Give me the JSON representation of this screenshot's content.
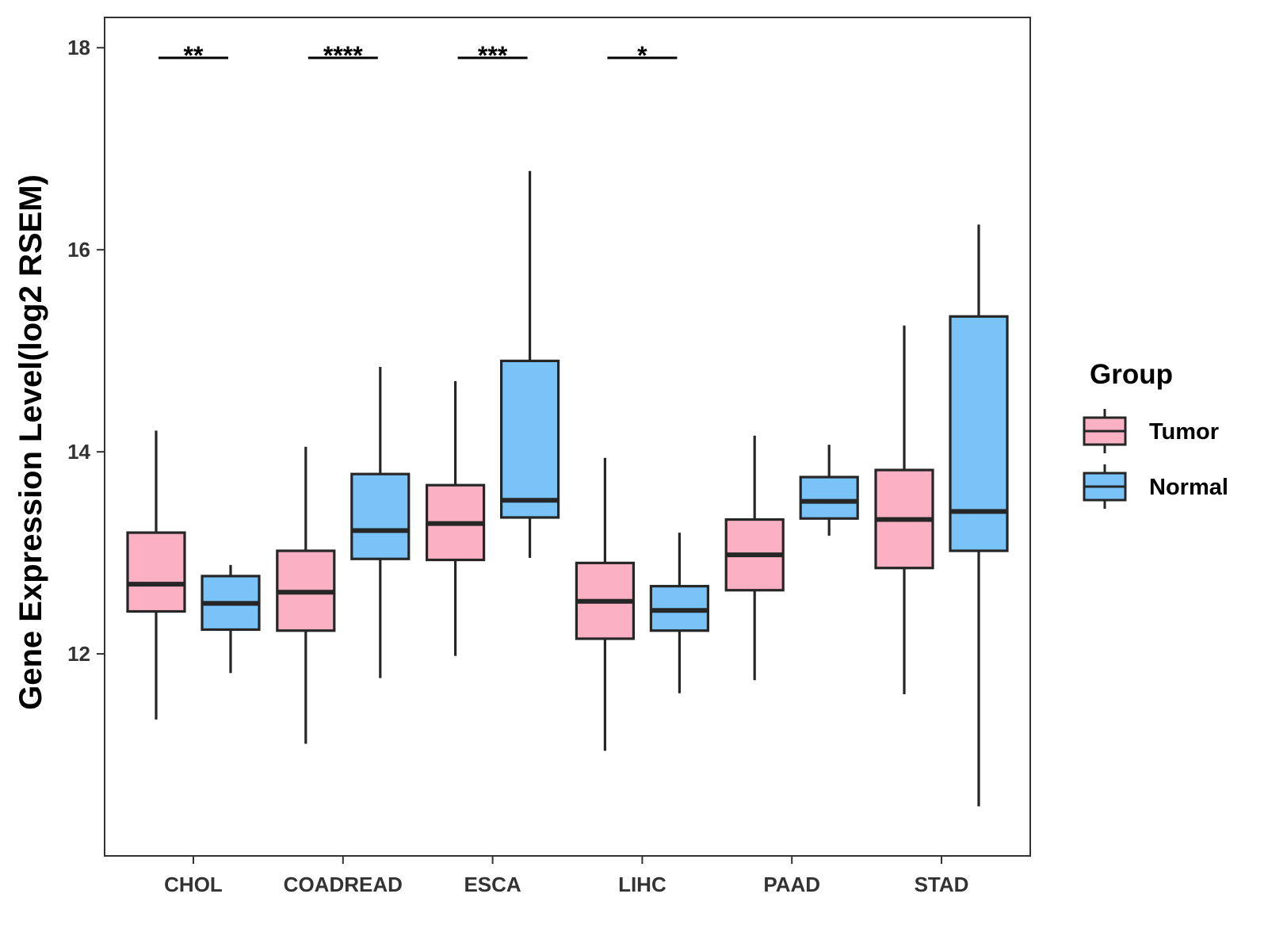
{
  "chart_data": {
    "type": "boxplot",
    "title": "",
    "xlabel": "",
    "ylabel": "Gene Expression Level(log2 RSEM)",
    "ylim": [
      10.0,
      18.3
    ],
    "yticks": [
      12,
      14,
      16,
      18
    ],
    "grid": false,
    "categories": [
      "CHOL",
      "COADREAD",
      "ESCA",
      "LIHC",
      "PAAD",
      "STAD"
    ],
    "legend": {
      "title": "Group",
      "position": "right",
      "entries": [
        {
          "label": "Tumor",
          "color": "#FBB1C3"
        },
        {
          "label": "Normal",
          "color": "#79C3F9"
        }
      ]
    },
    "series": [
      {
        "name": "Tumor",
        "color": "#FBB1C3",
        "boxes": [
          {
            "category": "CHOL",
            "whisker_low": 11.35,
            "q1": 12.42,
            "median": 12.69,
            "q3": 13.2,
            "whisker_high": 14.21
          },
          {
            "category": "COADREAD",
            "whisker_low": 11.11,
            "q1": 12.23,
            "median": 12.61,
            "q3": 13.02,
            "whisker_high": 14.05
          },
          {
            "category": "ESCA",
            "whisker_low": 11.98,
            "q1": 12.93,
            "median": 13.29,
            "q3": 13.67,
            "whisker_high": 14.7
          },
          {
            "category": "LIHC",
            "whisker_low": 11.04,
            "q1": 12.15,
            "median": 12.52,
            "q3": 12.9,
            "whisker_high": 13.94
          },
          {
            "category": "PAAD",
            "whisker_low": 11.74,
            "q1": 12.63,
            "median": 12.98,
            "q3": 13.33,
            "whisker_high": 14.16
          },
          {
            "category": "STAD",
            "whisker_low": 11.6,
            "q1": 12.85,
            "median": 13.33,
            "q3": 13.82,
            "whisker_high": 15.25
          }
        ]
      },
      {
        "name": "Normal",
        "color": "#79C3F9",
        "boxes": [
          {
            "category": "CHOL",
            "whisker_low": 11.81,
            "q1": 12.24,
            "median": 12.5,
            "q3": 12.77,
            "whisker_high": 12.88
          },
          {
            "category": "COADREAD",
            "whisker_low": 11.76,
            "q1": 12.94,
            "median": 13.22,
            "q3": 13.78,
            "whisker_high": 14.84
          },
          {
            "category": "ESCA",
            "whisker_low": 12.95,
            "q1": 13.35,
            "median": 13.52,
            "q3": 14.9,
            "whisker_high": 16.78
          },
          {
            "category": "LIHC",
            "whisker_low": 11.61,
            "q1": 12.23,
            "median": 12.43,
            "q3": 12.67,
            "whisker_high": 13.2
          },
          {
            "category": "PAAD",
            "whisker_low": 13.17,
            "q1": 13.34,
            "median": 13.51,
            "q3": 13.75,
            "whisker_high": 14.07
          },
          {
            "category": "STAD",
            "whisker_low": 10.49,
            "q1": 13.02,
            "median": 13.41,
            "q3": 15.34,
            "whisker_high": 16.25
          }
        ]
      }
    ],
    "annotations": [
      {
        "category": "CHOL",
        "label": "**",
        "y": 17.9
      },
      {
        "category": "COADREAD",
        "label": "****",
        "y": 17.9
      },
      {
        "category": "ESCA",
        "label": "***",
        "y": 17.9
      },
      {
        "category": "LIHC",
        "label": "*",
        "y": 17.9
      }
    ]
  }
}
